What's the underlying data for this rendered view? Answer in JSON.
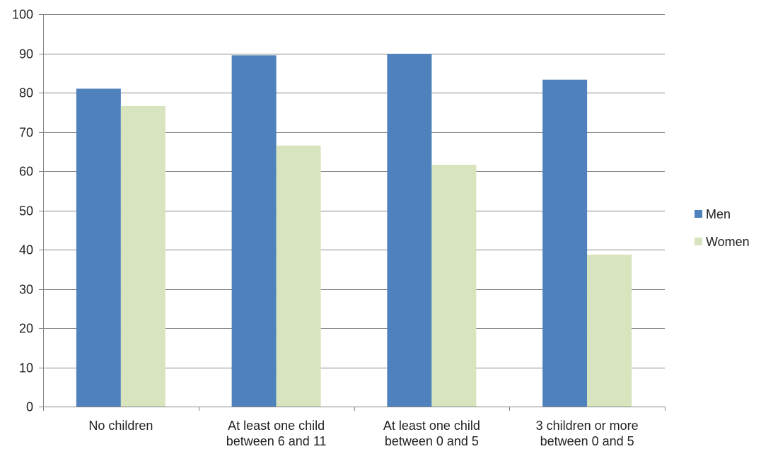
{
  "chart_data": {
    "type": "bar",
    "categories": [
      [
        "No children"
      ],
      [
        "At least one child",
        "between 6 and 11"
      ],
      [
        "At least one child",
        "between 0 and 5"
      ],
      [
        "3 children or more",
        "between 0 and 5"
      ]
    ],
    "series": [
      {
        "name": "Men",
        "color": "#4f81bd",
        "values": [
          81,
          89.5,
          89.9,
          83.3
        ]
      },
      {
        "name": "Women",
        "color": "#d7e4bd",
        "values": [
          76.6,
          66.5,
          61.6,
          38.7
        ]
      }
    ],
    "title": "",
    "xlabel": "",
    "ylabel": "",
    "ylim": [
      0,
      100
    ],
    "yticks": [
      0,
      10,
      20,
      30,
      40,
      50,
      60,
      70,
      80,
      90,
      100
    ],
    "grid": true,
    "legend_position": "right",
    "colors": {
      "grid": "#868686",
      "axis": "#868686",
      "text": "#222222"
    }
  }
}
